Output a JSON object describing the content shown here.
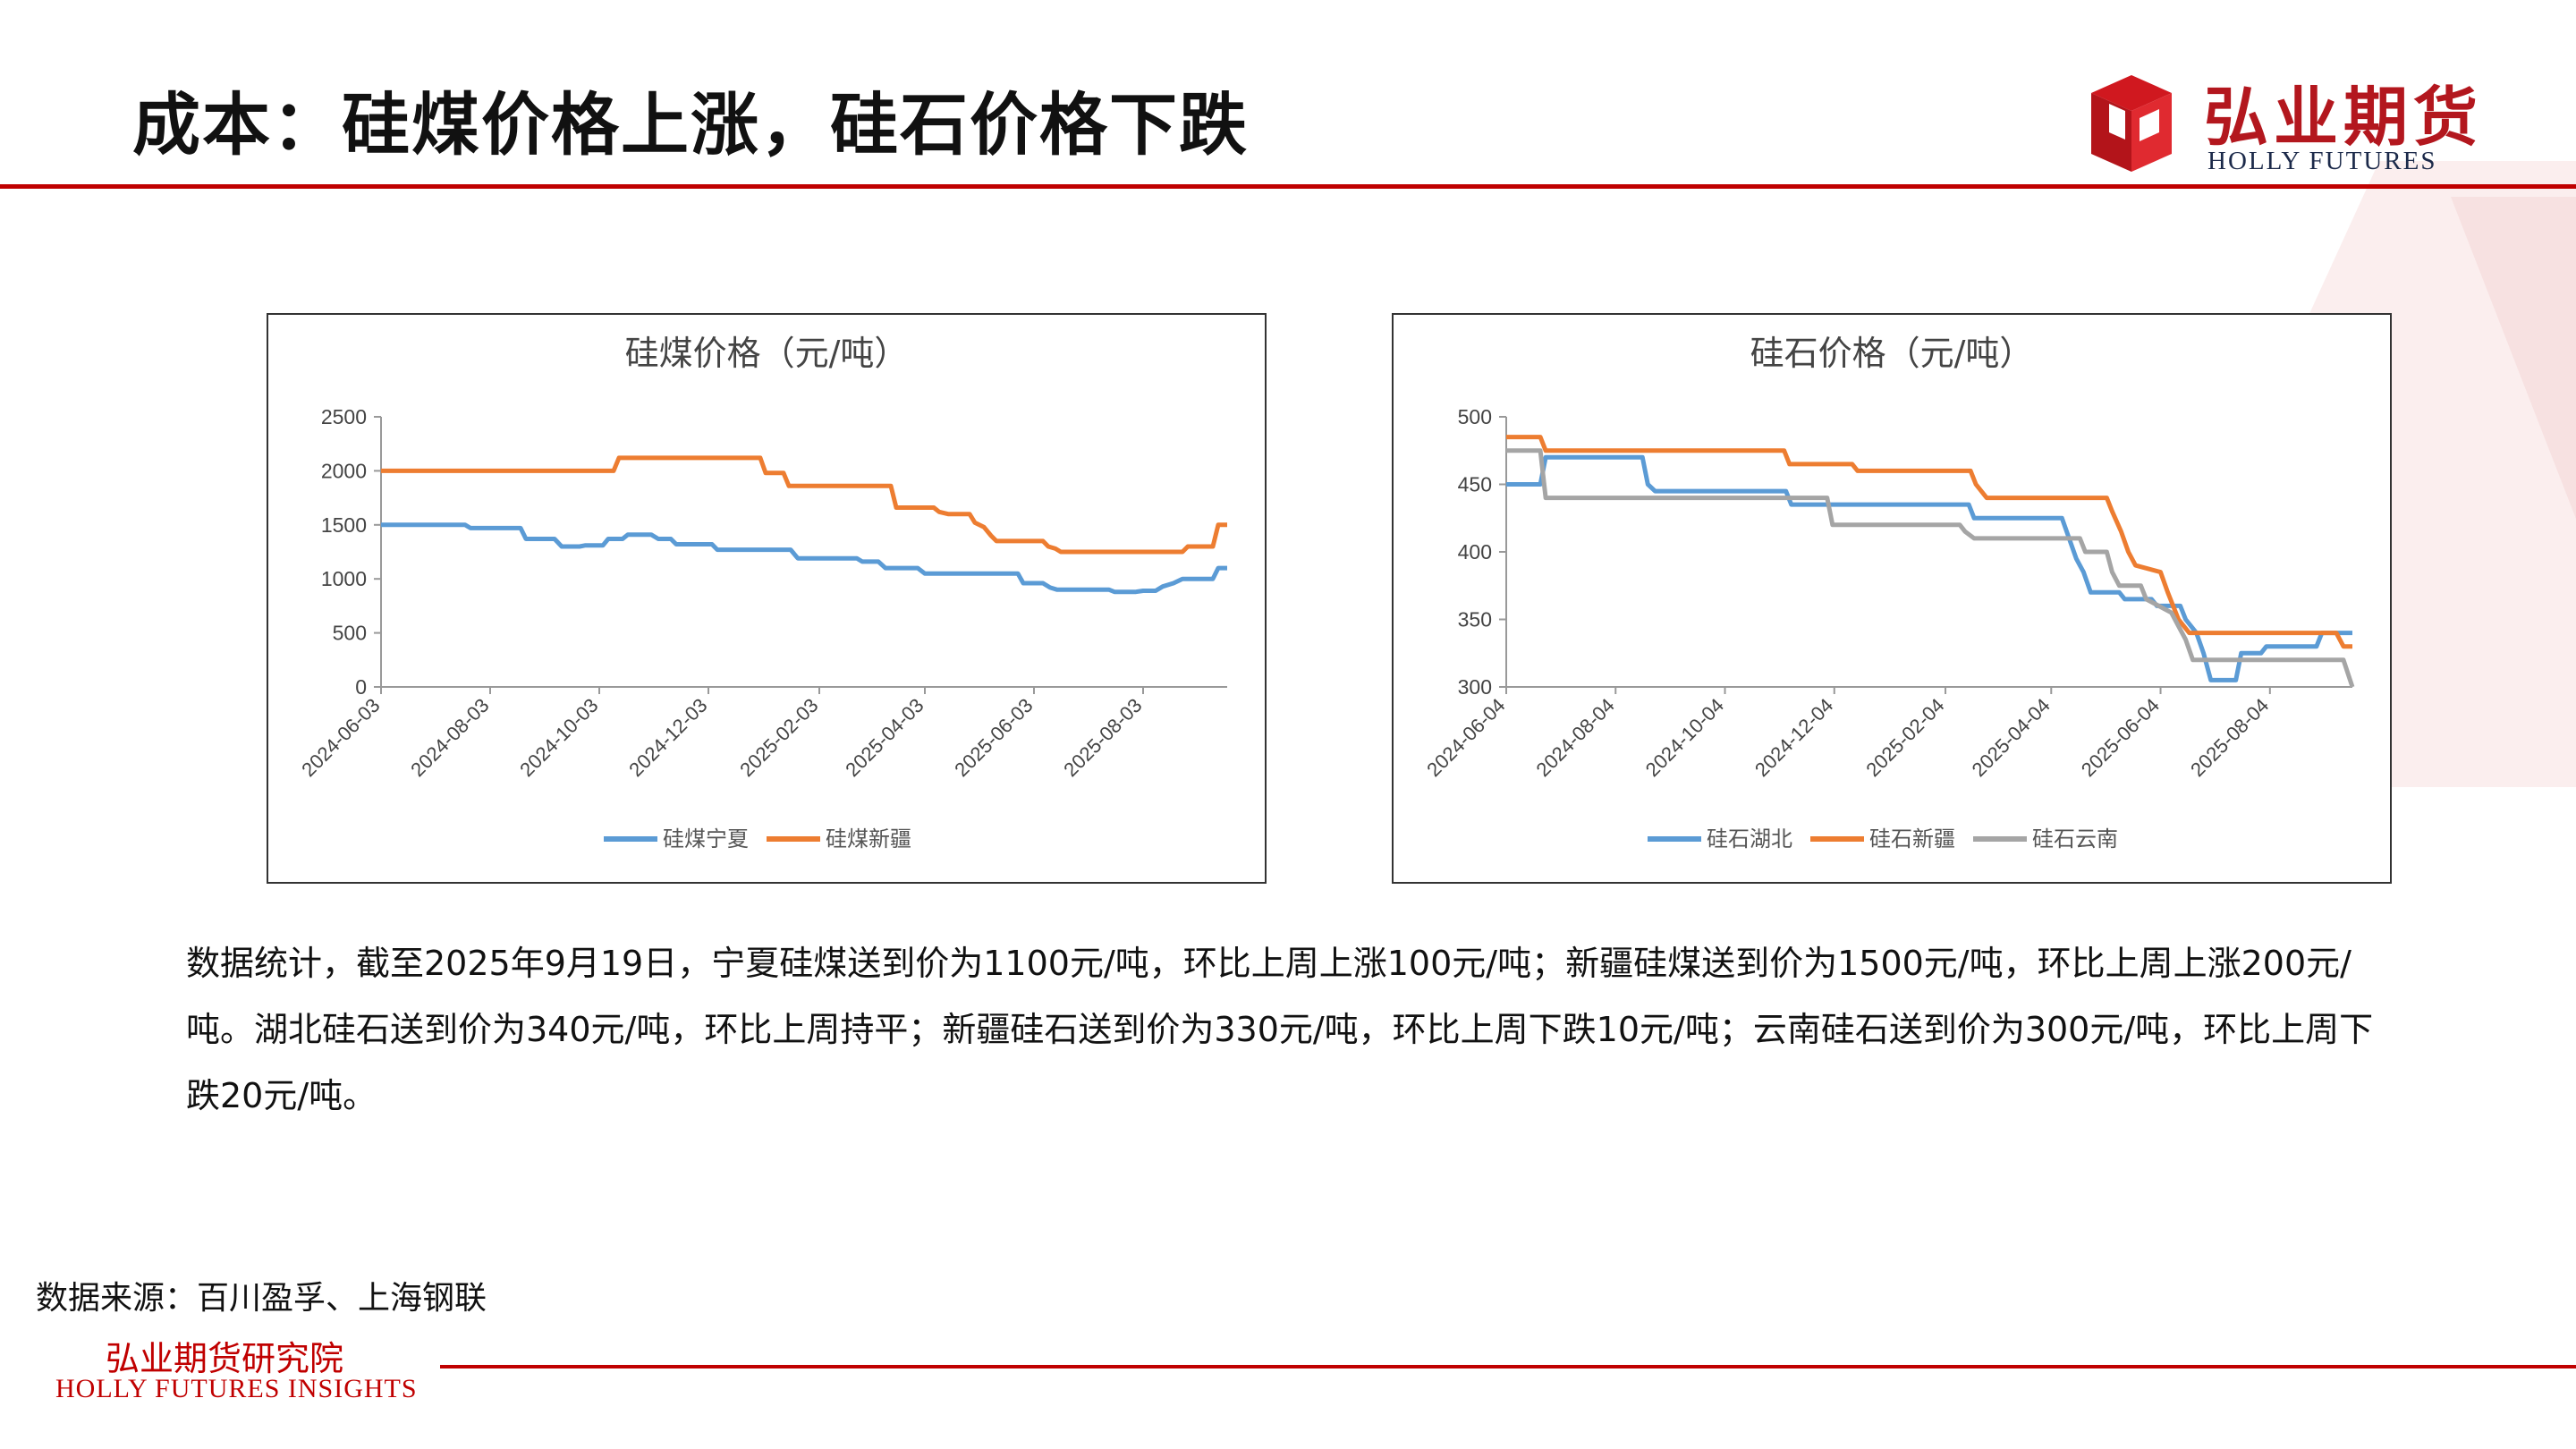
{
  "header": {
    "title": "成本：硅煤价格上涨，硅石价格下跌",
    "logo_cn": "弘业期货",
    "logo_en": "HOLLY FUTURES"
  },
  "colors": {
    "accent_red": "#c00000",
    "series_blue": "#5b9bd5",
    "series_orange": "#ed7d31",
    "series_gray": "#a5a5a5"
  },
  "chart_data": [
    {
      "type": "line",
      "title": "硅煤价格（元/吨）",
      "ylim": [
        0,
        2500
      ],
      "yticks": [
        "0",
        "500",
        "1000",
        "1500",
        "2000",
        "2500"
      ],
      "xlim": [
        "2024-06-03",
        "2025-09-19"
      ],
      "xticks": [
        "2024-06-03",
        "2024-08-03",
        "2024-10-03",
        "2024-12-03",
        "2025-02-03",
        "2025-04-03",
        "2025-06-03",
        "2025-08-03"
      ],
      "grid": false,
      "legend": "bottom",
      "series": [
        {
          "name": "硅煤宁夏",
          "color": "#5b9bd5",
          "points": [
            [
              "2024-06-03",
              1500
            ],
            [
              "2024-07-20",
              1500
            ],
            [
              "2024-07-23",
              1470
            ],
            [
              "2024-08-20",
              1470
            ],
            [
              "2024-08-23",
              1370
            ],
            [
              "2024-09-08",
              1370
            ],
            [
              "2024-09-12",
              1300
            ],
            [
              "2024-09-22",
              1300
            ],
            [
              "2024-09-25",
              1310
            ],
            [
              "2024-10-05",
              1310
            ],
            [
              "2024-10-08",
              1370
            ],
            [
              "2024-10-16",
              1370
            ],
            [
              "2024-10-19",
              1410
            ],
            [
              "2024-11-01",
              1410
            ],
            [
              "2024-11-05",
              1370
            ],
            [
              "2024-11-12",
              1370
            ],
            [
              "2024-11-15",
              1320
            ],
            [
              "2024-12-05",
              1320
            ],
            [
              "2024-12-08",
              1270
            ],
            [
              "2025-01-18",
              1270
            ],
            [
              "2025-01-22",
              1190
            ],
            [
              "2025-02-24",
              1190
            ],
            [
              "2025-02-27",
              1160
            ],
            [
              "2025-03-08",
              1160
            ],
            [
              "2025-03-12",
              1100
            ],
            [
              "2025-03-30",
              1100
            ],
            [
              "2025-04-03",
              1050
            ],
            [
              "2025-05-25",
              1050
            ],
            [
              "2025-05-28",
              960
            ],
            [
              "2025-06-08",
              960
            ],
            [
              "2025-06-12",
              920
            ],
            [
              "2025-06-16",
              900
            ],
            [
              "2025-07-15",
              900
            ],
            [
              "2025-07-18",
              880
            ],
            [
              "2025-07-30",
              880
            ],
            [
              "2025-08-03",
              890
            ],
            [
              "2025-08-10",
              890
            ],
            [
              "2025-08-14",
              930
            ],
            [
              "2025-08-20",
              960
            ],
            [
              "2025-08-25",
              1000
            ],
            [
              "2025-09-11",
              1000
            ],
            [
              "2025-09-14",
              1100
            ],
            [
              "2025-09-19",
              1100
            ]
          ]
        },
        {
          "name": "硅煤新疆",
          "color": "#ed7d31",
          "points": [
            [
              "2024-06-03",
              2000
            ],
            [
              "2024-10-11",
              2000
            ],
            [
              "2024-10-14",
              2120
            ],
            [
              "2025-01-01",
              2120
            ],
            [
              "2025-01-04",
              1980
            ],
            [
              "2025-01-14",
              1980
            ],
            [
              "2025-01-17",
              1860
            ],
            [
              "2025-03-15",
              1860
            ],
            [
              "2025-03-18",
              1660
            ],
            [
              "2025-04-08",
              1660
            ],
            [
              "2025-04-11",
              1620
            ],
            [
              "2025-04-16",
              1600
            ],
            [
              "2025-04-28",
              1600
            ],
            [
              "2025-05-01",
              1520
            ],
            [
              "2025-05-06",
              1480
            ],
            [
              "2025-05-10",
              1400
            ],
            [
              "2025-05-13",
              1350
            ],
            [
              "2025-06-08",
              1350
            ],
            [
              "2025-06-11",
              1300
            ],
            [
              "2025-06-15",
              1280
            ],
            [
              "2025-06-18",
              1250
            ],
            [
              "2025-08-25",
              1250
            ],
            [
              "2025-08-28",
              1300
            ],
            [
              "2025-09-11",
              1300
            ],
            [
              "2025-09-14",
              1500
            ],
            [
              "2025-09-19",
              1500
            ]
          ]
        }
      ]
    },
    {
      "type": "line",
      "title": "硅石价格（元/吨）",
      "ylim": [
        300,
        500
      ],
      "yticks": [
        "300",
        "350",
        "400",
        "450",
        "500"
      ],
      "xlim": [
        "2024-06-04",
        "2025-09-19"
      ],
      "xticks": [
        "2024-06-04",
        "2024-08-04",
        "2024-10-04",
        "2024-12-04",
        "2025-02-04",
        "2025-04-04",
        "2025-06-04",
        "2025-08-04"
      ],
      "grid": false,
      "legend": "bottom",
      "series": [
        {
          "name": "硅石湖北",
          "color": "#5b9bd5",
          "points": [
            [
              "2024-06-04",
              450
            ],
            [
              "2024-06-23",
              450
            ],
            [
              "2024-06-26",
              470
            ],
            [
              "2024-08-19",
              470
            ],
            [
              "2024-08-22",
              450
            ],
            [
              "2024-08-26",
              445
            ],
            [
              "2024-11-07",
              445
            ],
            [
              "2024-11-10",
              435
            ],
            [
              "2025-02-17",
              435
            ],
            [
              "2025-02-20",
              425
            ],
            [
              "2025-04-10",
              425
            ],
            [
              "2025-04-14",
              410
            ],
            [
              "2025-04-18",
              395
            ],
            [
              "2025-04-22",
              385
            ],
            [
              "2025-04-26",
              370
            ],
            [
              "2025-05-12",
              370
            ],
            [
              "2025-05-15",
              365
            ],
            [
              "2025-05-30",
              365
            ],
            [
              "2025-06-02",
              360
            ],
            [
              "2025-06-15",
              360
            ],
            [
              "2025-06-18",
              350
            ],
            [
              "2025-06-24",
              340
            ],
            [
              "2025-06-28",
              325
            ],
            [
              "2025-07-02",
              305
            ],
            [
              "2025-07-16",
              305
            ],
            [
              "2025-07-19",
              325
            ],
            [
              "2025-07-30",
              325
            ],
            [
              "2025-08-02",
              330
            ],
            [
              "2025-08-30",
              330
            ],
            [
              "2025-09-02",
              340
            ],
            [
              "2025-09-19",
              340
            ]
          ]
        },
        {
          "name": "硅石新疆",
          "color": "#ed7d31",
          "points": [
            [
              "2024-06-04",
              485
            ],
            [
              "2024-06-23",
              485
            ],
            [
              "2024-06-26",
              475
            ],
            [
              "2024-11-06",
              475
            ],
            [
              "2024-11-09",
              465
            ],
            [
              "2024-12-14",
              465
            ],
            [
              "2024-12-17",
              460
            ],
            [
              "2025-02-18",
              460
            ],
            [
              "2025-02-21",
              450
            ],
            [
              "2025-02-27",
              440
            ],
            [
              "2025-05-05",
              440
            ],
            [
              "2025-05-08",
              430
            ],
            [
              "2025-05-13",
              415
            ],
            [
              "2025-05-17",
              400
            ],
            [
              "2025-05-21",
              390
            ],
            [
              "2025-06-04",
              385
            ],
            [
              "2025-06-08",
              370
            ],
            [
              "2025-06-14",
              350
            ],
            [
              "2025-06-20",
              340
            ],
            [
              "2025-09-10",
              340
            ],
            [
              "2025-09-14",
              330
            ],
            [
              "2025-09-19",
              330
            ]
          ]
        },
        {
          "name": "硅石云南",
          "color": "#a5a5a5",
          "points": [
            [
              "2024-06-04",
              475
            ],
            [
              "2024-06-23",
              475
            ],
            [
              "2024-06-26",
              440
            ],
            [
              "2024-11-30",
              440
            ],
            [
              "2024-12-03",
              420
            ],
            [
              "2025-02-12",
              420
            ],
            [
              "2025-02-15",
              415
            ],
            [
              "2025-02-20",
              410
            ],
            [
              "2025-04-20",
              410
            ],
            [
              "2025-04-23",
              400
            ],
            [
              "2025-05-05",
              400
            ],
            [
              "2025-05-08",
              385
            ],
            [
              "2025-05-12",
              375
            ],
            [
              "2025-05-24",
              375
            ],
            [
              "2025-05-27",
              365
            ],
            [
              "2025-06-10",
              355
            ],
            [
              "2025-06-14",
              345
            ],
            [
              "2025-06-18",
              335
            ],
            [
              "2025-06-22",
              320
            ],
            [
              "2025-09-14",
              320
            ],
            [
              "2025-09-19",
              300
            ]
          ]
        }
      ]
    }
  ],
  "body": {
    "paragraph": "数据统计，截至2025年9月19日，宁夏硅煤送到价为1100元/吨，环比上周上涨100元/吨；新疆硅煤送到价为1500元/吨，环比上周上涨200元/吨。湖北硅石送到价为340元/吨，环比上周持平；新疆硅石送到价为330元/吨，环比上周下跌10元/吨；云南硅石送到价为300元/吨，环比上周下跌20元/吨。"
  },
  "footer": {
    "source": "数据来源：百川盈孚、上海钢联",
    "org_cn": "弘业期货研究院",
    "org_en": "HOLLY FUTURES INSIGHTS"
  }
}
